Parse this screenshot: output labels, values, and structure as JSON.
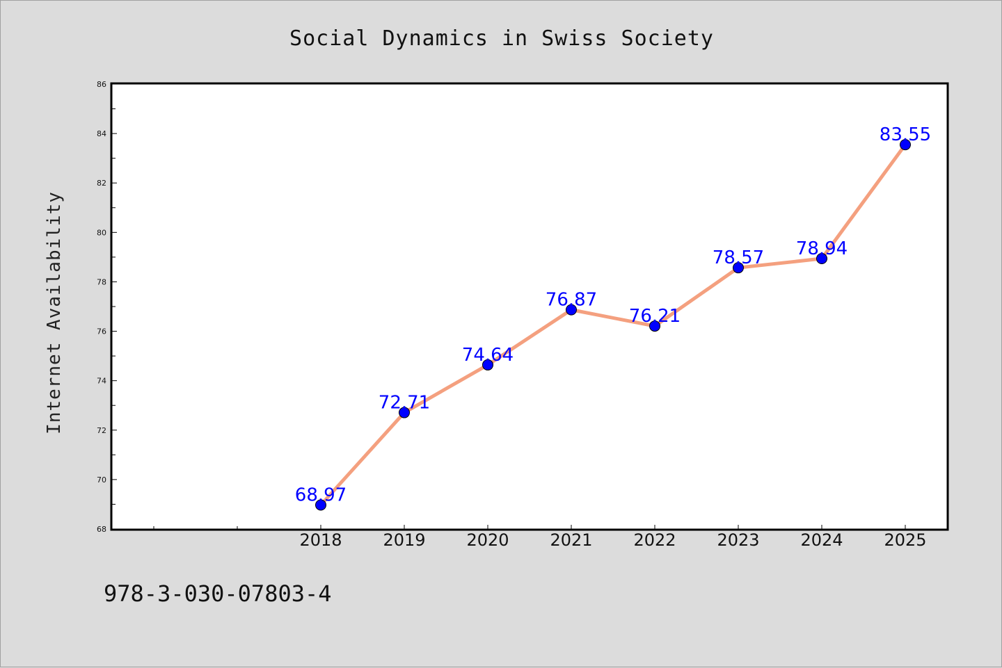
{
  "chart_data": {
    "type": "line",
    "title": "Social Dynamics in Swiss Society",
    "xlabel": "",
    "ylabel": "Internet Availability",
    "x": [
      "2018",
      "2019",
      "2020",
      "2021",
      "2022",
      "2023",
      "2024",
      "2025"
    ],
    "values": [
      68.97,
      72.71,
      74.64,
      76.87,
      76.21,
      78.57,
      78.94,
      83.55
    ],
    "data_labels": [
      "68.97",
      "72.71",
      "74.64",
      "76.87",
      "76.21",
      "78.57",
      "78.94",
      "83.55"
    ],
    "ylim": [
      68,
      86
    ],
    "yticks": [
      "68",
      "70",
      "72",
      "74",
      "76",
      "78",
      "80",
      "82",
      "84",
      "86"
    ],
    "grid": false,
    "legend": "none",
    "colors": {
      "line": "#f4a07f",
      "marker": "#0000ff",
      "data_label": "#0000ff",
      "plot_background": "#ffffff",
      "page_background": "#dcdcdc"
    }
  },
  "footer": {
    "isbn": "978-3-030-07803-4"
  }
}
